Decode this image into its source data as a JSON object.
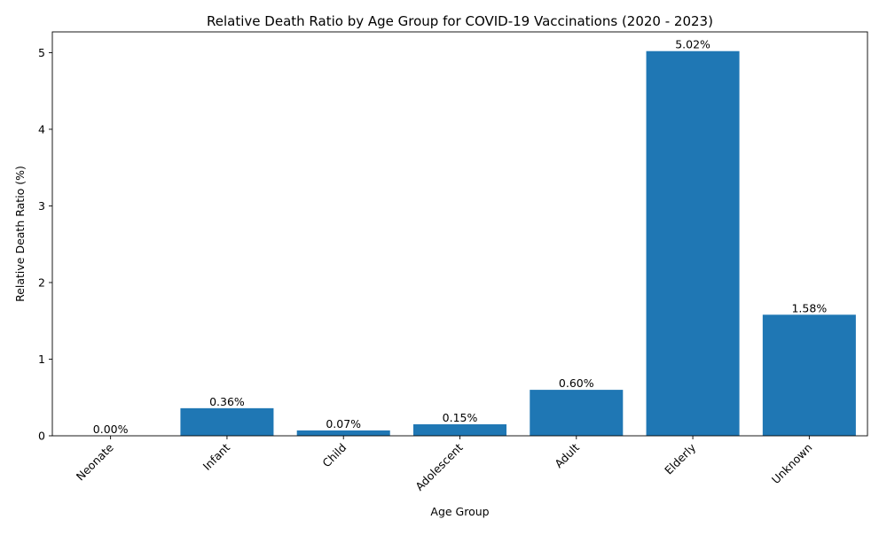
{
  "chart_data": {
    "type": "bar",
    "title": "Relative Death Ratio by Age Group for COVID-19 Vaccinations (2020 - 2023)",
    "xlabel": "Age Group",
    "ylabel": "Relative Death Ratio (%)",
    "categories": [
      "Neonate",
      "Infant",
      "Child",
      "Adolescent",
      "Adult",
      "Elderly",
      "Unknown"
    ],
    "values": [
      0.0,
      0.36,
      0.07,
      0.15,
      0.6,
      5.02,
      1.58
    ],
    "data_labels": [
      "0.00%",
      "0.36%",
      "0.07%",
      "0.15%",
      "0.60%",
      "5.02%",
      "1.58%"
    ],
    "ylim": [
      0,
      5.271
    ],
    "yticks": [
      0,
      1,
      2,
      3,
      4,
      5
    ],
    "ytick_labels": [
      "0",
      "1",
      "2",
      "3",
      "4",
      "5"
    ],
    "grid": false,
    "legend": "none",
    "bar_color": "#1f77b4",
    "xtick_rotation_deg": 45
  }
}
